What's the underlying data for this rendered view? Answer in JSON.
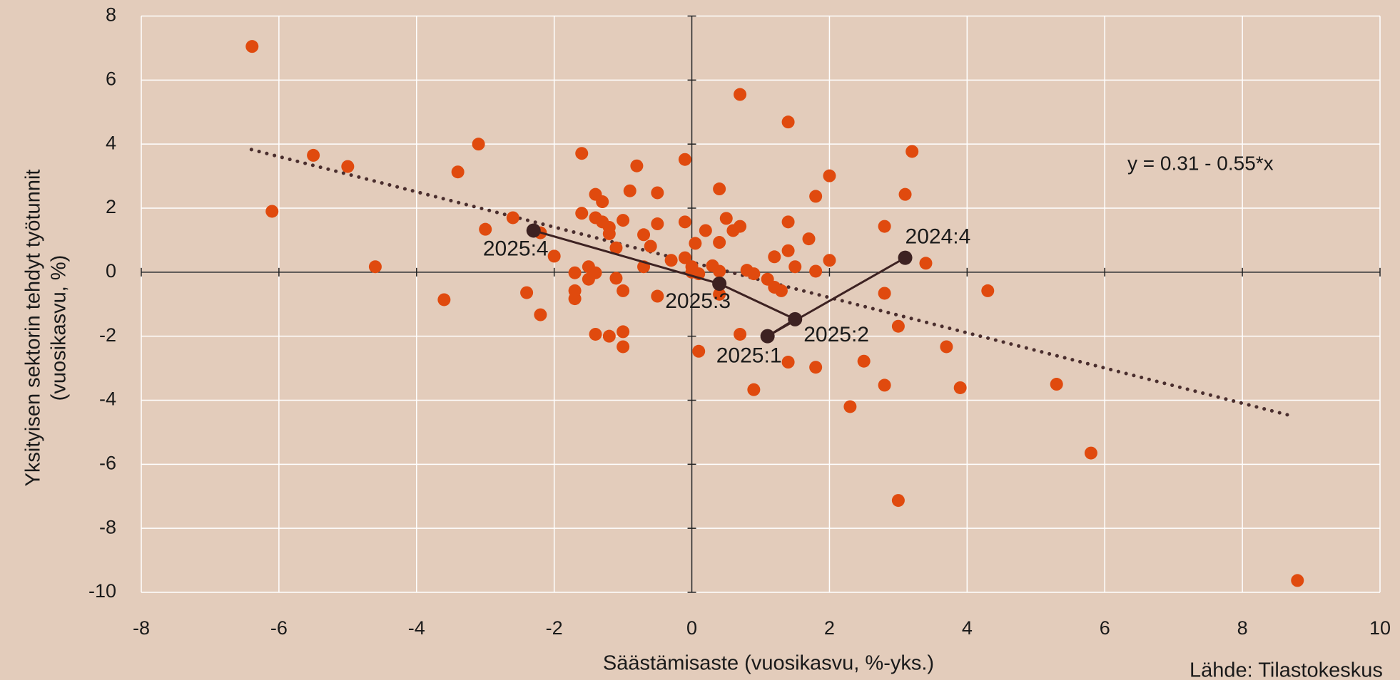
{
  "chart_data": {
    "type": "scatter",
    "x_label": "Säästämisaste (vuosikasvu, %-yks.)",
    "y_label": [
      "Yksityisen sektorin tehdyt työtunnit",
      "(vuosikasvu, %)"
    ],
    "annotation": "y = 0.31 - 0.55*x",
    "source": "Lähde: Tilastokeskus",
    "xlim": [
      -8,
      10
    ],
    "xticks": [
      -8,
      -6,
      -4,
      -2,
      0,
      2,
      4,
      6,
      8,
      10
    ],
    "ylim": [
      -10,
      8
    ],
    "yticks": [
      -10,
      -8,
      -6,
      -4,
      -2,
      0,
      2,
      4,
      6,
      8
    ],
    "grid": true,
    "series": [
      {
        "color": "#e04a0e",
        "x": [
          -6.39,
          -6.1,
          -5.5,
          -5.0,
          -4.6,
          -3.6,
          -3.4,
          -3.1,
          -3.0,
          -2.6,
          -2.4,
          -2.2,
          -2.2,
          -2.0,
          -1.7,
          -1.7,
          -1.7,
          -1.6,
          -1.6,
          -1.5,
          -1.5,
          -1.4,
          -1.4,
          -1.4,
          -1.4,
          -1.3,
          -1.3,
          -1.2,
          -1.2,
          -1.2,
          -1.1,
          -1.1,
          -1.0,
          -1.0,
          -1.0,
          -1.0,
          -0.9,
          -0.8,
          -0.7,
          -0.7,
          -0.6,
          -0.5,
          -0.5,
          -0.5,
          -0.3,
          -0.1,
          -0.1,
          -0.1,
          0.0,
          0.0,
          0.1,
          0.1,
          0.2,
          0.05,
          0.3,
          0.4,
          0.4,
          0.4,
          0.4,
          0.5,
          0.6,
          0.7,
          0.7,
          0.7,
          0.8,
          0.9,
          0.9,
          1.1,
          1.2,
          1.2,
          1.3,
          1.4,
          1.4,
          1.4,
          1.4,
          1.5,
          1.7,
          1.8,
          1.8,
          1.8,
          2.0,
          2.0,
          2.3,
          2.5,
          2.8,
          2.8,
          2.8,
          3.0,
          3.0,
          3.1,
          3.2,
          3.4,
          3.7,
          3.9,
          4.3,
          5.3,
          5.8,
          8.8
        ],
        "values": [
          7.05,
          1.9,
          3.65,
          3.3,
          0.17,
          -0.86,
          3.13,
          4.0,
          1.34,
          1.7,
          -0.64,
          -1.33,
          1.23,
          0.5,
          -0.02,
          -0.58,
          -0.83,
          3.71,
          1.84,
          0.17,
          -0.22,
          2.43,
          1.7,
          -0.02,
          -1.94,
          2.2,
          1.57,
          1.4,
          1.2,
          -2.0,
          0.76,
          -0.19,
          1.62,
          -0.58,
          -1.86,
          -2.33,
          2.54,
          3.32,
          1.17,
          0.17,
          0.81,
          2.48,
          1.51,
          -0.75,
          0.37,
          3.52,
          1.57,
          0.45,
          0.17,
          0.0,
          -0.05,
          -2.47,
          1.3,
          0.9,
          0.2,
          2.6,
          0.93,
          0.03,
          -0.69,
          1.68,
          1.3,
          5.55,
          1.43,
          -1.94,
          0.06,
          -0.05,
          -3.67,
          -0.22,
          0.48,
          -0.47,
          -0.58,
          4.69,
          1.57,
          0.67,
          -2.81,
          0.17,
          1.04,
          2.37,
          0.03,
          -2.97,
          3.01,
          0.37,
          -4.2,
          -2.78,
          1.43,
          -0.66,
          -3.53,
          -1.69,
          -7.13,
          2.43,
          3.77,
          0.28,
          -2.33,
          -3.61,
          -0.58,
          -3.5,
          -5.65,
          -9.63
        ]
      },
      {
        "color": "#3d2222",
        "labels": [
          "2024:4",
          "2025:1",
          "2025:2",
          "2025:3",
          "2025:4"
        ],
        "x": [
          3.1,
          1.1,
          1.5,
          0.4,
          -2.3
        ],
        "values": [
          0.45,
          -2.0,
          -1.47,
          -0.36,
          1.3
        ]
      }
    ],
    "trendline": {
      "color": "#4a2e2e",
      "x": [
        -6.4,
        8.7
      ],
      "values": [
        3.83,
        -4.48
      ]
    }
  }
}
